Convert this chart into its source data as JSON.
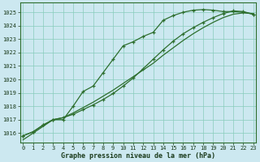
{
  "xlabel": "Graphe pression niveau de la mer (hPa)",
  "bg_color": "#cce8f0",
  "grid_color": "#88ccbb",
  "line_color": "#2d6e2d",
  "x": [
    0,
    1,
    2,
    3,
    4,
    5,
    6,
    7,
    8,
    9,
    10,
    11,
    12,
    13,
    14,
    15,
    16,
    17,
    18,
    19,
    20,
    21,
    22,
    23
  ],
  "line_steep": [
    1015.8,
    1016.1,
    1016.6,
    1017.0,
    1017.0,
    1018.0,
    1019.1,
    1019.5,
    1020.5,
    1021.5,
    1022.5,
    1022.8,
    1023.2,
    1023.5,
    1024.4,
    1024.75,
    1025.0,
    1025.15,
    1025.2,
    1025.15,
    1025.05,
    1025.05,
    1025.0,
    1024.85
  ],
  "line_diag": [
    1015.5,
    1016.0,
    1016.5,
    1017.0,
    1017.15,
    1017.5,
    1017.9,
    1018.3,
    1018.75,
    1019.2,
    1019.7,
    1020.2,
    1020.7,
    1021.2,
    1021.8,
    1022.35,
    1022.9,
    1023.4,
    1023.85,
    1024.25,
    1024.6,
    1024.85,
    1024.95,
    1024.9
  ],
  "line_grad": [
    1015.8,
    1016.1,
    1016.6,
    1017.0,
    1017.15,
    1017.4,
    1017.75,
    1018.1,
    1018.5,
    1018.95,
    1019.5,
    1020.1,
    1020.8,
    1021.5,
    1022.2,
    1022.85,
    1023.4,
    1023.85,
    1024.25,
    1024.6,
    1024.9,
    1025.1,
    1025.05,
    1024.85
  ],
  "ylim": [
    1015.3,
    1025.7
  ],
  "yticks": [
    1016,
    1017,
    1018,
    1019,
    1020,
    1021,
    1022,
    1023,
    1024,
    1025
  ],
  "xticks": [
    0,
    1,
    2,
    3,
    4,
    5,
    6,
    7,
    8,
    9,
    10,
    11,
    12,
    13,
    14,
    15,
    16,
    17,
    18,
    19,
    20,
    21,
    22,
    23
  ]
}
